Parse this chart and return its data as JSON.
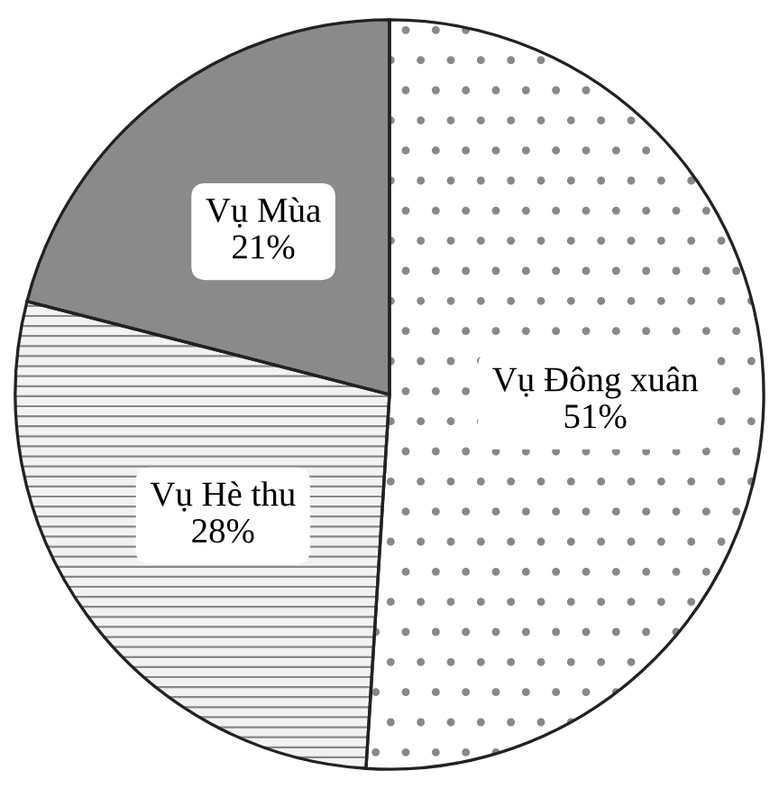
{
  "chart_data": {
    "type": "pie",
    "categories": [
      "Vụ Đông xuân",
      "Vụ Hè thu",
      "Vụ Mùa"
    ],
    "values": [
      51,
      28,
      21
    ],
    "value_labels": [
      "51%",
      "28%",
      "21%"
    ],
    "colors": [
      "#ffffff",
      "#f2f2f2",
      "#8a8a8a"
    ]
  }
}
